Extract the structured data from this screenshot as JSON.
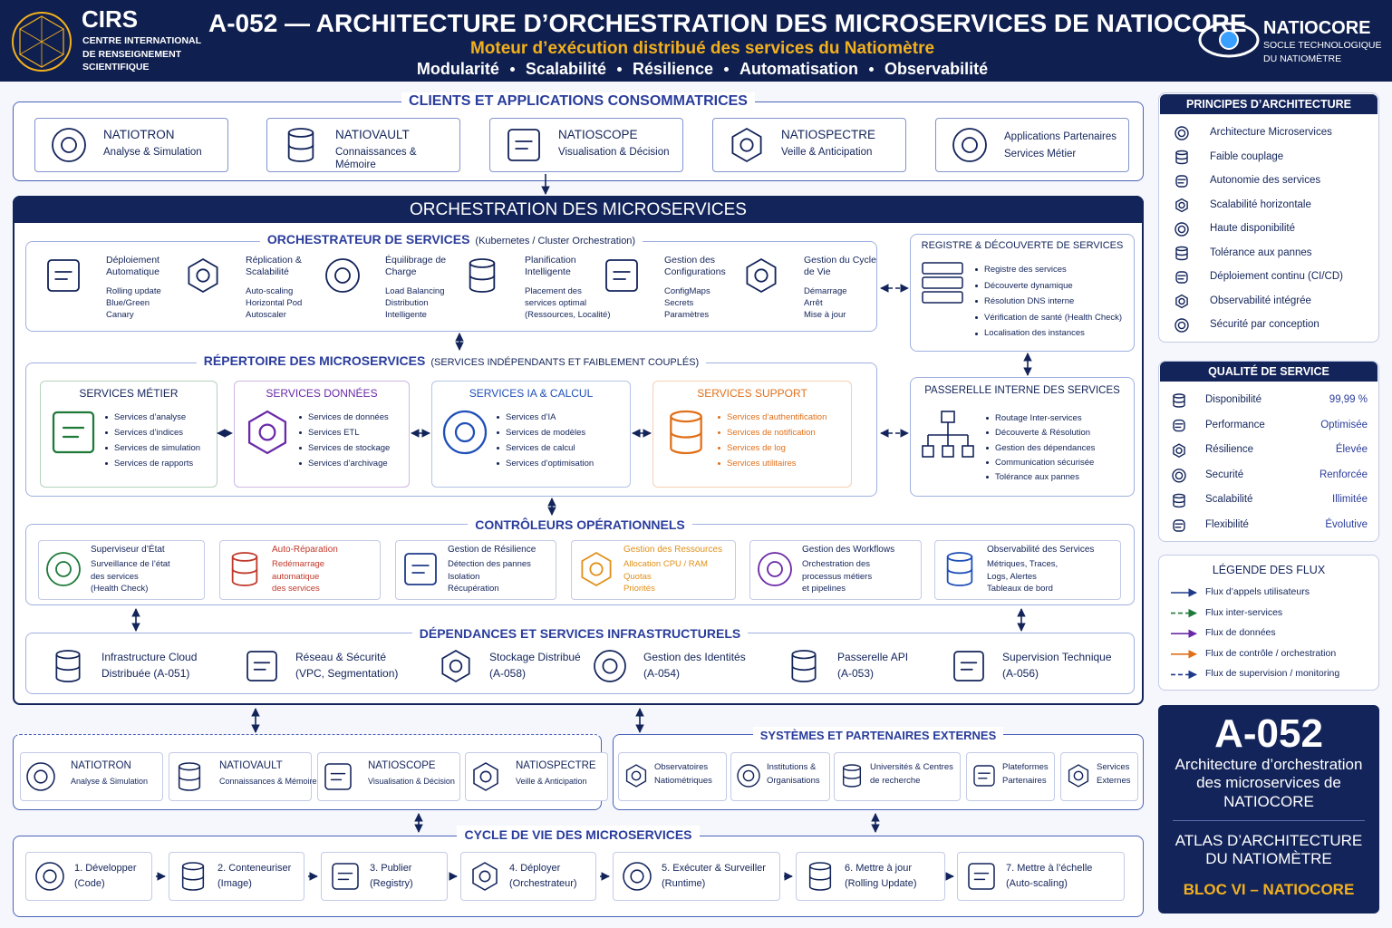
{
  "header": {
    "org": {
      "name": "CIRS",
      "lines": [
        "CENTRE INTERNATIONAL",
        "DE RENSEIGNEMENT",
        "SCIENTIFIQUE"
      ]
    },
    "title": "A-052 — ARCHITECTURE D’ORCHESTRATION DES MICROSERVICES DE NATIOCORE",
    "subtitle": "Moteur d’exécution distribué des services du Natiomètre",
    "keywords": [
      "Modularité",
      "Scalabilité",
      "Résilience",
      "Automatisation",
      "Observabilité"
    ],
    "brand": {
      "name": "NATIOCORE",
      "lines": [
        "SOCLE TECHNOLOGIQUE",
        "DU NATIOMÈTRE"
      ]
    }
  },
  "clients": {
    "title": "CLIENTS ET APPLICATIONS CONSOMMATRICES",
    "items": [
      {
        "name": "NATIOTRON",
        "desc": "Analyse & Simulation"
      },
      {
        "name": "NATIOVAULT",
        "desc": "Connaissances & Mémoire"
      },
      {
        "name": "NATIOSCOPE",
        "desc": "Visualisation & Décision"
      },
      {
        "name": "NATIOSPECTRE",
        "desc": "Veille & Anticipation"
      },
      {
        "name": "Applications Partenaires",
        "desc": "Services Métier"
      }
    ]
  },
  "orchestration": {
    "title": "ORCHESTRATION DES MICROSERVICES",
    "orchestrator": {
      "title": "ORCHESTRATEUR DE SERVICES",
      "note": "(Kubernetes / Cluster Orchestration)",
      "items": [
        {
          "title": "Déploiement Automatique",
          "details": [
            "Rolling update",
            "Blue/Green",
            "Canary"
          ]
        },
        {
          "title": "Réplication & Scalabilité",
          "details": [
            "Auto-scaling",
            "Horizontal Pod",
            "Autoscaler"
          ]
        },
        {
          "title": "Équilibrage de Charge",
          "details": [
            "Load Balancing",
            "Distribution",
            "Intelligente"
          ]
        },
        {
          "title": "Planification Intelligente",
          "details": [
            "Placement des",
            "services optimal",
            "(Ressources, Localité)"
          ]
        },
        {
          "title": "Gestion des Configurations",
          "details": [
            "ConfigMaps",
            "Secrets",
            "Paramètres"
          ]
        },
        {
          "title": "Gestion du Cycle de Vie",
          "details": [
            "Démarrage",
            "Arrêt",
            "Mise à jour"
          ]
        }
      ]
    },
    "registry": {
      "title": "REGISTRE & DÉCOUVERTE DE SERVICES",
      "items": [
        "Registre des services",
        "Découverte dynamique",
        "Résolution DNS interne",
        "Vérification de santé (Health Check)",
        "Localisation des instances"
      ]
    },
    "repertoire": {
      "title": "RÉPERTOIRE DES MICROSERVICES",
      "note": "(SERVICES INDÉPENDANTS ET FAIBLEMENT COUPLÉS)",
      "groups": [
        {
          "title": "SERVICES MÉTIER",
          "color": "#1f7a3a",
          "items": [
            "Services d’analyse",
            "Services d’indices",
            "Services de simulation",
            "Services de rapports"
          ]
        },
        {
          "title": "SERVICES DONNÉES",
          "color": "#6a2aa8",
          "items": [
            "Services de données",
            "Services ETL",
            "Services de stockage",
            "Services d’archivage"
          ]
        },
        {
          "title": "SERVICES IA & CALCUL",
          "color": "#1f4fb8",
          "items": [
            "Services d’IA",
            "Services de modèles",
            "Services de calcul",
            "Services d’optimisation"
          ]
        },
        {
          "title": "SERVICES SUPPORT",
          "color": "#e0701a",
          "items": [
            "Services d’authentification",
            "Services de notification",
            "Services de log",
            "Services utilitaires"
          ]
        }
      ]
    },
    "gateway": {
      "title": "PASSERELLE INTERNE DES SERVICES",
      "items": [
        "Routage Inter-services",
        "Découverte & Résolution",
        "Gestion des dépendances",
        "Communication sécurisée",
        "Tolérance aux pannes"
      ]
    },
    "controllers": {
      "title": "CONTRÔLEURS OPÉRATIONNELS",
      "items": [
        {
          "title": "Superviseur d’État",
          "color": "#1f7a3a",
          "details": [
            "Surveillance de l’état",
            "des services",
            "(Health Check)"
          ]
        },
        {
          "title": "Auto-Réparation",
          "color": "#c0392b",
          "details": [
            "Redémarrage",
            "automatique",
            "des services"
          ]
        },
        {
          "title": "Gestion de Résilience",
          "color": "#1f3a8a",
          "details": [
            "Détection des pannes",
            "Isolation",
            "Récupération"
          ]
        },
        {
          "title": "Gestion des Ressources",
          "color": "#e0901a",
          "details": [
            "Allocation CPU / RAM",
            "Quotas",
            "Priorités"
          ]
        },
        {
          "title": "Gestion des Workflows",
          "color": "#6a2aa8",
          "details": [
            "Orchestration des",
            "processus métiers",
            "et pipelines"
          ]
        },
        {
          "title": "Observabilité des Services",
          "color": "#1f4fb8",
          "details": [
            "Métriques, Traces,",
            "Logs, Alertes",
            "Tableaux de bord"
          ]
        }
      ]
    },
    "infrastructure": {
      "title": "DÉPENDANCES ET SERVICES INFRASTRUCTURELS",
      "items": [
        {
          "name": "Infrastructure Cloud",
          "code": "Distribuée (A-051)"
        },
        {
          "name": "Réseau & Sécurité",
          "code": "(VPC, Segmentation)"
        },
        {
          "name": "Stockage Distribué",
          "code": "(A-058)"
        },
        {
          "name": "Gestion des Identités",
          "code": "(A-054)"
        },
        {
          "name": "Passerelle API",
          "code": "(A-053)"
        },
        {
          "name": "Supervision Technique",
          "code": "(A-056)"
        }
      ]
    }
  },
  "platforms": [
    {
      "name": "NATIOTRON",
      "desc": "Analyse & Simulation"
    },
    {
      "name": "NATIOVAULT",
      "desc": "Connaissances & Mémoire"
    },
    {
      "name": "NATIOSCOPE",
      "desc": "Visualisation & Décision"
    },
    {
      "name": "NATIOSPECTRE",
      "desc": "Veille & Anticipation"
    }
  ],
  "externals": {
    "title": "SYSTÈMES ET PARTENAIRES EXTERNES",
    "items": [
      "Observatoires Natiométriques",
      "Institutions & Organisations",
      "Universités & Centres de recherche",
      "Plateformes Partenaires",
      "Services Externes"
    ]
  },
  "lifecycle": {
    "title": "CYCLE DE VIE DES MICROSERVICES",
    "steps": [
      {
        "label": "1. Développer",
        "sub": "(Code)"
      },
      {
        "label": "2. Conteneuriser",
        "sub": "(Image)"
      },
      {
        "label": "3. Publier",
        "sub": "(Registry)"
      },
      {
        "label": "4. Déployer",
        "sub": "(Orchestrateur)"
      },
      {
        "label": "5. Exécuter & Surveiller",
        "sub": "(Runtime)"
      },
      {
        "label": "6. Mettre à jour",
        "sub": "(Rolling Update)"
      },
      {
        "label": "7. Mettre à l’échelle",
        "sub": "(Auto-scaling)"
      }
    ]
  },
  "sidebar": {
    "principles": {
      "title": "PRINCIPES D’ARCHITECTURE",
      "items": [
        "Architecture Microservices",
        "Faible couplage",
        "Autonomie des services",
        "Scalabilité horizontale",
        "Haute disponibilité",
        "Tolérance aux pannes",
        "Déploiement continu (CI/CD)",
        "Observabilité intégrée",
        "Sécurité par conception"
      ]
    },
    "quality": {
      "title": "QUALITÉ DE SERVICE",
      "rows": [
        {
          "name": "Disponibilité",
          "value": "99,99 %"
        },
        {
          "name": "Performance",
          "value": "Optimisée"
        },
        {
          "name": "Résilience",
          "value": "Élevée"
        },
        {
          "name": "Securité",
          "value": "Renforcée"
        },
        {
          "name": "Scalabilité",
          "value": "Illimitée"
        },
        {
          "name": "Flexibilité",
          "value": "Évolutive"
        }
      ]
    },
    "legend": {
      "title": "LÉGENDE DES FLUX",
      "items": [
        {
          "label": "Flux d’appels utilisateurs",
          "color": "#1f3a8a",
          "style": "solid"
        },
        {
          "label": "Flux inter-services",
          "color": "#1f7a3a",
          "style": "dashed"
        },
        {
          "label": "Flux de données",
          "color": "#6a2aa8",
          "style": "solid"
        },
        {
          "label": "Flux de contrôle / orchestration",
          "color": "#e0701a",
          "style": "solid"
        },
        {
          "label": "Flux de supervision / monitoring",
          "color": "#1f3a8a",
          "style": "dashed"
        }
      ]
    },
    "card": {
      "code": "A-052",
      "description": "Architecture d’orchestration des microservices de NATIOCORE",
      "atlas": "ATLAS D’ARCHITECTURE DU NATIOMÈTRE",
      "bloc": "BLOC VI – NATIOCORE"
    }
  }
}
